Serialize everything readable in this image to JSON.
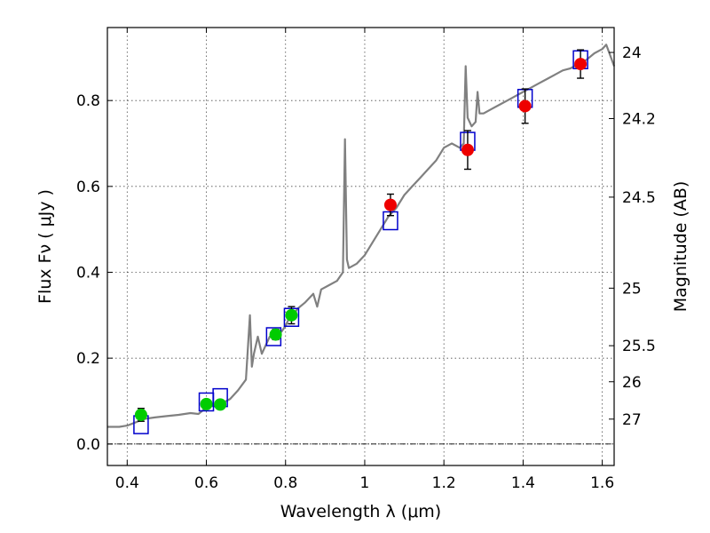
{
  "chart_data": {
    "type": "scatter",
    "xlabel": "Wavelength  λ (μm)",
    "ylabel": "Flux  Fν  ( μJy )",
    "ylabel_right": "Magnitude (AB)",
    "xlim": [
      0.35,
      1.63
    ],
    "ylim": [
      -0.05,
      0.97
    ],
    "grid": true,
    "xticks": [
      {
        "v": 0.4,
        "label": "0.4"
      },
      {
        "v": 0.6,
        "label": "0.6"
      },
      {
        "v": 0.8,
        "label": "0.8"
      },
      {
        "v": 1.0,
        "label": "1"
      },
      {
        "v": 1.2,
        "label": "1.2"
      },
      {
        "v": 1.4,
        "label": "1.4"
      },
      {
        "v": 1.6,
        "label": "1.6"
      }
    ],
    "yticks": [
      {
        "v": 0.0,
        "label": "0.0"
      },
      {
        "v": 0.2,
        "label": "0.2"
      },
      {
        "v": 0.4,
        "label": "0.4"
      },
      {
        "v": 0.6,
        "label": "0.6"
      },
      {
        "v": 0.8,
        "label": "0.8"
      }
    ],
    "right_ticks": [
      {
        "mag": "24",
        "flux": 0.912
      },
      {
        "mag": "24.2",
        "flux": 0.758
      },
      {
        "mag": "24.5",
        "flux": 0.575
      },
      {
        "mag": "25",
        "flux": 0.363
      },
      {
        "mag": "25.5",
        "flux": 0.229
      },
      {
        "mag": "26",
        "flux": 0.145
      },
      {
        "mag": "27",
        "flux": 0.058
      }
    ],
    "model_spectrum": {
      "color": "#808080",
      "points": [
        [
          0.35,
          0.04
        ],
        [
          0.38,
          0.04
        ],
        [
          0.4,
          0.043
        ],
        [
          0.42,
          0.05
        ],
        [
          0.44,
          0.058
        ],
        [
          0.47,
          0.062
        ],
        [
          0.5,
          0.065
        ],
        [
          0.53,
          0.068
        ],
        [
          0.56,
          0.072
        ],
        [
          0.58,
          0.07
        ],
        [
          0.6,
          0.085
        ],
        [
          0.62,
          0.09
        ],
        [
          0.64,
          0.095
        ],
        [
          0.66,
          0.105
        ],
        [
          0.68,
          0.125
        ],
        [
          0.7,
          0.15
        ],
        [
          0.71,
          0.3
        ],
        [
          0.715,
          0.18
        ],
        [
          0.72,
          0.21
        ],
        [
          0.73,
          0.25
        ],
        [
          0.74,
          0.21
        ],
        [
          0.75,
          0.23
        ],
        [
          0.76,
          0.25
        ],
        [
          0.77,
          0.252
        ],
        [
          0.78,
          0.255
        ],
        [
          0.79,
          0.262
        ],
        [
          0.8,
          0.275
        ],
        [
          0.81,
          0.295
        ],
        [
          0.82,
          0.3
        ],
        [
          0.83,
          0.315
        ],
        [
          0.85,
          0.33
        ],
        [
          0.87,
          0.35
        ],
        [
          0.88,
          0.32
        ],
        [
          0.89,
          0.36
        ],
        [
          0.91,
          0.37
        ],
        [
          0.93,
          0.38
        ],
        [
          0.945,
          0.4
        ],
        [
          0.95,
          0.71
        ],
        [
          0.955,
          0.43
        ],
        [
          0.96,
          0.41
        ],
        [
          0.98,
          0.42
        ],
        [
          1.0,
          0.44
        ],
        [
          1.02,
          0.47
        ],
        [
          1.04,
          0.5
        ],
        [
          1.06,
          0.53
        ],
        [
          1.08,
          0.55
        ],
        [
          1.1,
          0.58
        ],
        [
          1.12,
          0.6
        ],
        [
          1.14,
          0.62
        ],
        [
          1.16,
          0.64
        ],
        [
          1.18,
          0.66
        ],
        [
          1.2,
          0.69
        ],
        [
          1.22,
          0.7
        ],
        [
          1.24,
          0.69
        ],
        [
          1.25,
          0.7
        ],
        [
          1.255,
          0.88
        ],
        [
          1.26,
          0.76
        ],
        [
          1.27,
          0.74
        ],
        [
          1.28,
          0.75
        ],
        [
          1.285,
          0.82
        ],
        [
          1.29,
          0.77
        ],
        [
          1.3,
          0.77
        ],
        [
          1.32,
          0.78
        ],
        [
          1.34,
          0.79
        ],
        [
          1.36,
          0.8
        ],
        [
          1.38,
          0.81
        ],
        [
          1.4,
          0.82
        ],
        [
          1.42,
          0.83
        ],
        [
          1.44,
          0.84
        ],
        [
          1.46,
          0.85
        ],
        [
          1.48,
          0.86
        ],
        [
          1.5,
          0.87
        ],
        [
          1.52,
          0.875
        ],
        [
          1.54,
          0.885
        ],
        [
          1.56,
          0.895
        ],
        [
          1.58,
          0.91
        ],
        [
          1.6,
          0.92
        ],
        [
          1.61,
          0.93
        ],
        [
          1.63,
          0.88
        ]
      ]
    },
    "model_photometry": {
      "marker": "open-square",
      "color": "#0000cc",
      "points": [
        [
          0.435,
          0.045
        ],
        [
          0.6,
          0.098
        ],
        [
          0.635,
          0.108
        ],
        [
          0.77,
          0.25
        ],
        [
          0.815,
          0.295
        ],
        [
          1.065,
          0.52
        ],
        [
          1.26,
          0.705
        ],
        [
          1.405,
          0.805
        ],
        [
          1.545,
          0.895
        ]
      ]
    },
    "observed_optical": {
      "marker": "filled-circle",
      "color": "#00cc00",
      "points": [
        {
          "x": 0.435,
          "y": 0.068,
          "err": 0.015
        },
        {
          "x": 0.6,
          "y": 0.093,
          "err": 0.008
        },
        {
          "x": 0.635,
          "y": 0.092,
          "err": 0.008
        },
        {
          "x": 0.775,
          "y": 0.255,
          "err": 0.012
        },
        {
          "x": 0.815,
          "y": 0.3,
          "err": 0.02
        }
      ]
    },
    "observed_nir": {
      "marker": "filled-circle",
      "color": "#ee0000",
      "points": [
        {
          "x": 1.065,
          "y": 0.557,
          "err": 0.025
        },
        {
          "x": 1.26,
          "y": 0.685,
          "err": 0.045
        },
        {
          "x": 1.405,
          "y": 0.787,
          "err": 0.04
        },
        {
          "x": 1.545,
          "y": 0.885,
          "err": 0.033
        }
      ]
    }
  }
}
